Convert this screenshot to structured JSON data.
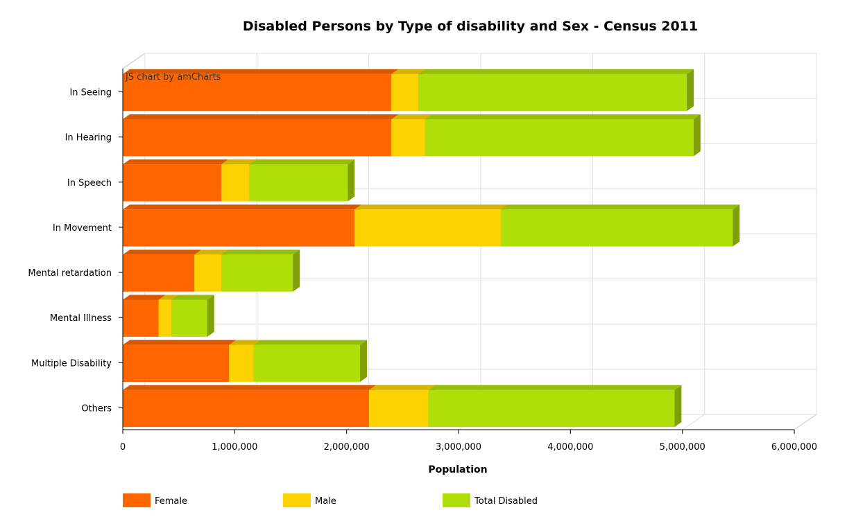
{
  "chart_data": {
    "type": "bar",
    "orientation": "horizontal",
    "stacked": true,
    "three_d": true,
    "title": "Disabled Persons by Type of disability and Sex - Census 2011",
    "xlabel": "Population",
    "ylabel": "",
    "xlim": [
      0,
      6000000
    ],
    "x_ticks": [
      "0",
      "1,000,000",
      "2,000,000",
      "3,000,000",
      "4,000,000",
      "5,000,000",
      "6,000,000"
    ],
    "grid": true,
    "legend_position": "bottom-left",
    "categories": [
      "In Seeing",
      "In Hearing",
      "In Speech",
      "In Movement",
      "Mental retardation",
      "Mental Illness",
      "Multiple Disability",
      "Others"
    ],
    "series": [
      {
        "name": "Female",
        "color": "#FF6600",
        "values": [
          2400000,
          2400000,
          880000,
          2070000,
          640000,
          320000,
          950000,
          2200000
        ]
      },
      {
        "name": "Male",
        "color": "#FCD202",
        "values": [
          240000,
          300000,
          250000,
          1310000,
          240000,
          115000,
          220000,
          530000
        ]
      },
      {
        "name": "Total Disabled",
        "color": "#B0DE09",
        "values": [
          2400000,
          2400000,
          880000,
          2070000,
          640000,
          320000,
          950000,
          2200000
        ]
      }
    ]
  },
  "credit": "JS chart by amCharts"
}
